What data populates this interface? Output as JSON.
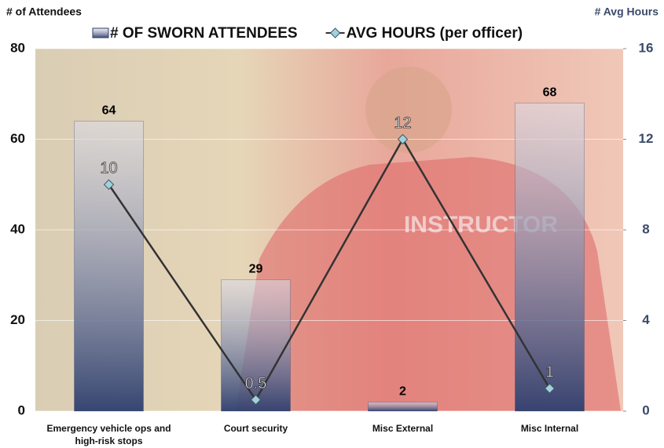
{
  "chart_data": {
    "type": "bar+line",
    "y_label": "# of Attendees",
    "y2_label": "# Avg Hours",
    "categories": [
      "Emergency vehicle ops and high-risk stops",
      "Court security",
      "Misc External",
      "Misc Internal"
    ],
    "series": [
      {
        "name": "# OF SWORN ATTENDEES",
        "type": "bar",
        "color": "#2e3f6e",
        "values": [
          64,
          29,
          2,
          68
        ]
      },
      {
        "name": "AVG HOURS (per officer)",
        "type": "line",
        "color": "#333333",
        "marker_color": "#9fd3dc",
        "axis": "y2",
        "values": [
          10,
          0.5,
          12,
          1
        ]
      }
    ],
    "ylim": [
      0,
      80
    ],
    "yticks": [
      0,
      20,
      40,
      60,
      80
    ],
    "y2lim": [
      0,
      16
    ],
    "y2ticks": [
      0,
      4,
      8,
      12,
      16
    ],
    "grid": true,
    "legend": "top"
  }
}
